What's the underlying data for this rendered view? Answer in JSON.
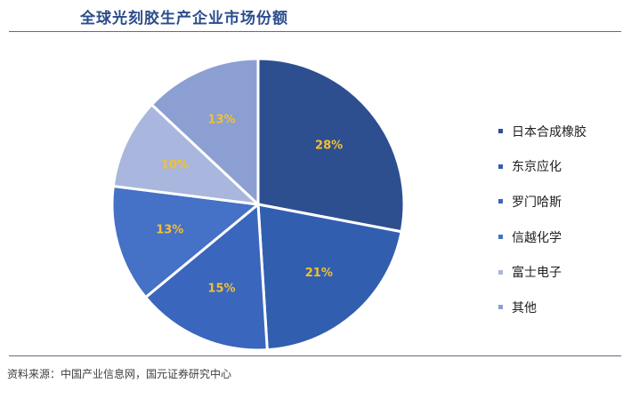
{
  "title": "全球光刻胶生产企业市场份额",
  "source": "资料来源：中国产业信息网，国元证券研究中心",
  "chart_data": {
    "type": "pie",
    "title": "全球光刻胶生产企业市场份额",
    "legend_position": "right",
    "start_angle": "12 o'clock, clockwise",
    "label_color": "#f2c12e",
    "slices": [
      {
        "name": "日本合成橡胶",
        "value": 28,
        "label": "28%",
        "color": "#2e4f8f"
      },
      {
        "name": "东京应化",
        "value": 21,
        "label": "21%",
        "color": "#325eb0"
      },
      {
        "name": "罗门哈斯",
        "value": 15,
        "label": "15%",
        "color": "#3a66bd"
      },
      {
        "name": "信越化学",
        "value": 13,
        "label": "13%",
        "color": "#4571c6"
      },
      {
        "name": "富士电子",
        "value": 10,
        "label": "10%",
        "color": "#a9b6dd"
      },
      {
        "name": "其他",
        "value": 13,
        "label": "13%",
        "color": "#8c9fd2"
      }
    ]
  }
}
